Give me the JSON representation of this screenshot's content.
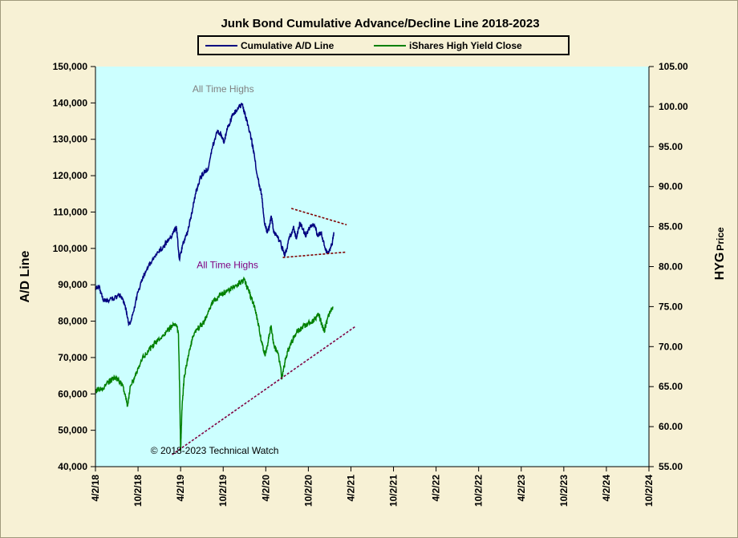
{
  "chart_data": {
    "type": "line",
    "title": "Junk Bond Cumulative Advance/Decline Line 2018-2023",
    "ylabel_left": "A/D Line",
    "ylabel_right_main": "HYG",
    "ylabel_right_sub": "Price",
    "ylim_left": [
      40000,
      150000
    ],
    "ylim_right": [
      55,
      105
    ],
    "yticks_left": [
      "40,000",
      "50,000",
      "60,000",
      "70,000",
      "80,000",
      "90,000",
      "100,000",
      "110,000",
      "120,000",
      "130,000",
      "140,000",
      "150,000"
    ],
    "yticks_right": [
      "55.00",
      "60.00",
      "65.00",
      "70.00",
      "75.00",
      "80.00",
      "85.00",
      "90.00",
      "95.00",
      "100.00",
      "105.00"
    ],
    "xticks": [
      "4/2/18",
      "10/2/18",
      "4/2/19",
      "10/2/19",
      "4/2/20",
      "10/2/20",
      "4/2/21",
      "10/2/21",
      "4/2/22",
      "10/2/22",
      "4/2/23",
      "10/2/23",
      "4/2/24",
      "10/2/24"
    ],
    "plot_background": "#ccffff",
    "legend_position": "top-center",
    "series": [
      {
        "name": "Cumulative A/D Line",
        "axis": "left",
        "color": "#000080",
        "points": [
          [
            0,
            89000
          ],
          [
            0.08,
            89800
          ],
          [
            0.17,
            86000
          ],
          [
            0.3,
            85500
          ],
          [
            0.45,
            86500
          ],
          [
            0.6,
            87000
          ],
          [
            0.7,
            84000
          ],
          [
            0.78,
            79000
          ],
          [
            0.85,
            80500
          ],
          [
            1.0,
            88000
          ],
          [
            1.15,
            93000
          ],
          [
            1.3,
            96000
          ],
          [
            1.45,
            99000
          ],
          [
            1.6,
            100500
          ],
          [
            1.7,
            102000
          ],
          [
            1.8,
            103500
          ],
          [
            1.9,
            106000
          ],
          [
            1.95,
            99500
          ],
          [
            1.97,
            97000
          ],
          [
            2.05,
            101000
          ],
          [
            2.15,
            104000
          ],
          [
            2.25,
            109000
          ],
          [
            2.35,
            115000
          ],
          [
            2.45,
            119000
          ],
          [
            2.55,
            121000
          ],
          [
            2.65,
            122000
          ],
          [
            2.75,
            128000
          ],
          [
            2.85,
            132000
          ],
          [
            2.95,
            131500
          ],
          [
            3.02,
            129000
          ],
          [
            3.1,
            133000
          ],
          [
            3.2,
            136000
          ],
          [
            3.3,
            138000
          ],
          [
            3.45,
            139500
          ],
          [
            3.52,
            136500
          ],
          [
            3.6,
            133000
          ],
          [
            3.7,
            128000
          ],
          [
            3.8,
            120000
          ],
          [
            3.9,
            115000
          ],
          [
            3.97,
            107000
          ],
          [
            4.03,
            104500
          ],
          [
            4.08,
            106000
          ],
          [
            4.13,
            109000
          ],
          [
            4.18,
            105000
          ],
          [
            4.25,
            103500
          ],
          [
            4.33,
            102000
          ],
          [
            4.45,
            98000
          ],
          [
            4.55,
            102500
          ],
          [
            4.65,
            106000
          ],
          [
            4.72,
            102500
          ],
          [
            4.8,
            107000
          ],
          [
            4.88,
            105000
          ],
          [
            4.95,
            103500
          ],
          [
            5.05,
            106500
          ],
          [
            5.15,
            106000
          ],
          [
            5.22,
            103500
          ],
          [
            5.3,
            104500
          ],
          [
            5.4,
            99500
          ],
          [
            5.48,
            99000
          ],
          [
            5.55,
            101000
          ],
          [
            5.6,
            104000
          ]
        ]
      },
      {
        "name": "iShares High Yield Close",
        "axis": "right",
        "color": "#008000",
        "points": [
          [
            0,
            64.5
          ],
          [
            0.15,
            64.8
          ],
          [
            0.3,
            65.5
          ],
          [
            0.45,
            66.2
          ],
          [
            0.55,
            65.8
          ],
          [
            0.65,
            65.0
          ],
          [
            0.72,
            63.5
          ],
          [
            0.75,
            62.5
          ],
          [
            0.82,
            65.0
          ],
          [
            0.95,
            66.5
          ],
          [
            1.1,
            68.5
          ],
          [
            1.25,
            69.5
          ],
          [
            1.4,
            70.5
          ],
          [
            1.55,
            71.0
          ],
          [
            1.7,
            72.0
          ],
          [
            1.8,
            72.5
          ],
          [
            1.9,
            72.8
          ],
          [
            1.95,
            71.5
          ],
          [
            1.98,
            64.0
          ],
          [
            2.0,
            57.0
          ],
          [
            2.03,
            62.0
          ],
          [
            2.08,
            66.0
          ],
          [
            2.15,
            68.0
          ],
          [
            2.25,
            70.5
          ],
          [
            2.35,
            72.0
          ],
          [
            2.45,
            72.5
          ],
          [
            2.55,
            73.0
          ],
          [
            2.65,
            74.5
          ],
          [
            2.75,
            75.5
          ],
          [
            2.85,
            76.0
          ],
          [
            2.95,
            76.5
          ],
          [
            3.1,
            77.0
          ],
          [
            3.25,
            77.5
          ],
          [
            3.4,
            78.0
          ],
          [
            3.5,
            78.3
          ],
          [
            3.6,
            77.0
          ],
          [
            3.7,
            75.5
          ],
          [
            3.8,
            73.5
          ],
          [
            3.9,
            70.5
          ],
          [
            3.98,
            69.0
          ],
          [
            4.05,
            70.5
          ],
          [
            4.12,
            72.5
          ],
          [
            4.2,
            70.0
          ],
          [
            4.3,
            69.0
          ],
          [
            4.38,
            66.0
          ],
          [
            4.45,
            68.0
          ],
          [
            4.55,
            70.0
          ],
          [
            4.65,
            71.0
          ],
          [
            4.75,
            72.0
          ],
          [
            4.85,
            72.3
          ],
          [
            4.95,
            72.8
          ],
          [
            5.05,
            73.0
          ],
          [
            5.15,
            73.5
          ],
          [
            5.25,
            74.0
          ],
          [
            5.33,
            72.5
          ],
          [
            5.38,
            72.0
          ],
          [
            5.45,
            73.5
          ],
          [
            5.52,
            74.5
          ],
          [
            5.58,
            75.0
          ]
        ]
      }
    ],
    "trendlines": [
      {
        "name": "ad-upper-trend",
        "axis": "left",
        "color": "#800000",
        "from": [
          4.6,
          111000
        ],
        "to": [
          5.9,
          106500
        ]
      },
      {
        "name": "ad-lower-trend",
        "axis": "left",
        "color": "#800000",
        "from": [
          4.4,
          97500
        ],
        "to": [
          5.9,
          99000
        ]
      },
      {
        "name": "hyg-support-trend",
        "axis": "right",
        "color": "#800040",
        "from": [
          1.8,
          56.5
        ],
        "to": [
          6.1,
          72.5
        ]
      }
    ],
    "annotations": [
      {
        "text": "All Time Highs",
        "x": 3.0,
        "axis": "left",
        "y": 143000,
        "color": "#808080"
      },
      {
        "text": "All Time Highs",
        "x": 3.1,
        "axis": "right",
        "y": 79.8,
        "color": "#800080"
      },
      {
        "text": "© 2018-2023  Technical Watch",
        "x": 2.8,
        "axis": "left",
        "y": 43500,
        "color": "#000000"
      }
    ]
  }
}
